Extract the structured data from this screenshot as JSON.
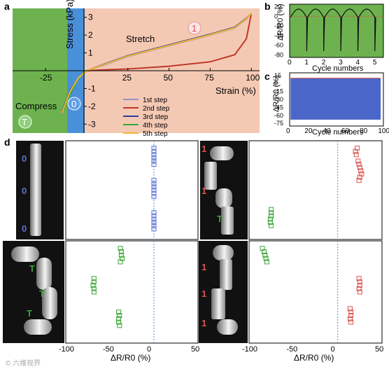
{
  "panels": {
    "a": {
      "letter": "a",
      "y_label": "Stress (kPa)",
      "x_label": "Strain (%)",
      "x_ticks": [
        "-25",
        "25",
        "50",
        "75",
        "100"
      ],
      "y_ticks": [
        "3",
        "2",
        "1",
        "-1",
        "-2",
        "-3"
      ],
      "annotation_stretch": "Stretch",
      "annotation_compress": "Compress",
      "state_stretch": "1",
      "state_neutral": "0",
      "state_compress": "T",
      "colors": {
        "compress_zone": "#6db24f",
        "neutral_zone": "#4a90d9",
        "stretch_zone": "#f4c9b4"
      }
    },
    "b": {
      "letter": "b",
      "y_label": "ΔR/R0 (%)",
      "x_label": "Cycle numbers",
      "x_ticks": [
        "0",
        "1",
        "2",
        "3",
        "4",
        "5"
      ],
      "y_ticks": [
        "20",
        "0",
        "-20",
        "-40",
        "-60",
        "-80"
      ]
    },
    "c": {
      "letter": "c",
      "y_label": "ΔR/R0 (%)",
      "x_label": "Cycle numbers",
      "x_ticks": [
        "0",
        "20",
        "40",
        "60",
        "80",
        "100"
      ],
      "y_ticks": [
        "15",
        "0",
        "-15",
        "-30",
        "-45",
        "-60",
        "-75"
      ]
    },
    "d": {
      "letter": "d",
      "x_label": "ΔR/R0 (%)",
      "x_ticks_left": [
        "-100",
        "-50",
        "0",
        "50"
      ],
      "x_ticks_right": [
        "-100",
        "-50",
        "0",
        "50"
      ],
      "photo_labels": {
        "tl": [
          "0",
          "0",
          "0"
        ],
        "tr": [
          "1",
          "1",
          "T"
        ],
        "bl": [
          "T",
          "T",
          "T"
        ],
        "br": [
          "1",
          "1",
          "1"
        ]
      }
    }
  },
  "watermark": "© 六维视界",
  "chart_data": [
    {
      "panel": "a",
      "type": "line",
      "xlabel": "Strain (%)",
      "ylabel": "Stress (kPa)",
      "xlim": [
        -45,
        105
      ],
      "ylim": [
        -3.5,
        3.5
      ],
      "series": [
        {
          "name": "1st step",
          "color": "#9a8ec8",
          "x": [
            -15,
            -10,
            -5,
            0,
            10,
            25,
            50,
            75,
            90,
            97,
            100
          ],
          "y": [
            -2.4,
            -1.2,
            -0.4,
            0,
            0.3,
            0.8,
            1.4,
            2.0,
            2.4,
            2.9,
            3.2
          ]
        },
        {
          "name": "2nd step",
          "color": "#c0392b",
          "x": [
            100,
            97,
            90,
            75,
            50,
            25,
            10,
            0
          ],
          "y": [
            3.2,
            1.8,
            0.9,
            0.5,
            0.25,
            0.1,
            0.05,
            0
          ]
        },
        {
          "name": "3rd step",
          "color": "#2c3e9a",
          "x": [
            -15,
            -10,
            -5,
            0,
            10,
            25,
            50,
            75,
            90,
            97,
            100
          ],
          "y": [
            -2.3,
            -1.1,
            -0.4,
            0,
            0.35,
            0.85,
            1.45,
            2.05,
            2.45,
            2.95,
            3.2
          ]
        },
        {
          "name": "4th step",
          "color": "#3aa635",
          "x": [
            -14,
            -10,
            -6,
            -3,
            0
          ],
          "y": [
            -2.2,
            -1.3,
            -0.6,
            -0.2,
            0
          ]
        },
        {
          "name": "5th step",
          "color": "#f2b632",
          "x": [
            -15,
            -10,
            -5,
            0,
            10,
            25,
            50,
            75,
            90,
            97,
            100
          ],
          "y": [
            -2.35,
            -1.15,
            -0.4,
            0,
            0.33,
            0.82,
            1.42,
            2.02,
            2.42,
            2.92,
            3.2
          ]
        }
      ]
    },
    {
      "panel": "b",
      "type": "line",
      "xlabel": "Cycle numbers",
      "ylabel": "ΔR/R0 (%)",
      "xlim": [
        0,
        5.5
      ],
      "ylim": [
        -85,
        25
      ],
      "series": [
        {
          "description": "periodic strain cycles",
          "cycles": 5,
          "peak_max": 17,
          "trough_min": -72
        }
      ]
    },
    {
      "panel": "c",
      "type": "line",
      "xlabel": "Cycle numbers",
      "ylabel": "ΔR/R0 (%)",
      "xlim": [
        0,
        102
      ],
      "ylim": [
        -80,
        20
      ],
      "series": [
        {
          "cycles": 100,
          "upper_envelope": 10,
          "lower_envelope": -68
        }
      ]
    },
    {
      "panel": "d-top-left",
      "type": "scatter",
      "xlabel": "ΔR/R0 (%)",
      "xlim": [
        -100,
        50
      ],
      "color": "#5b6fd6",
      "x": [
        0,
        0,
        0,
        0,
        0,
        0,
        0,
        0,
        0,
        0,
        0,
        0,
        0,
        0,
        0,
        0,
        0,
        0
      ],
      "y": [
        1,
        2,
        3,
        4,
        5,
        6,
        11,
        12,
        13,
        14,
        15,
        16,
        21,
        22,
        23,
        24,
        25,
        26
      ]
    },
    {
      "panel": "d-top-right",
      "type": "scatter",
      "xlabel": "ΔR/R0 (%)",
      "xlim": [
        -100,
        50
      ],
      "series": [
        {
          "color": "#d9534f",
          "x": [
            22,
            20,
            21,
            23,
            24,
            25,
            26,
            27,
            25,
            24
          ],
          "y": [
            1,
            2,
            3,
            5,
            6,
            7,
            8,
            9,
            10,
            11
          ]
        },
        {
          "color": "#3aa635",
          "x": [
            -75,
            -75,
            -75,
            -76,
            -76,
            -75
          ],
          "y": [
            20,
            21,
            22,
            23,
            24,
            25
          ]
        }
      ]
    },
    {
      "panel": "d-bottom-left",
      "type": "scatter",
      "xlabel": "ΔR/R0 (%)",
      "xlim": [
        -100,
        50
      ],
      "color": "#3aa635",
      "series": [
        {
          "x": [
            -38,
            -37,
            -37,
            -36,
            -38
          ],
          "y": [
            1,
            2,
            3,
            4,
            5
          ]
        },
        {
          "x": [
            -68,
            -68,
            -69,
            -68,
            -68
          ],
          "y": [
            10,
            11,
            12,
            13,
            14
          ]
        },
        {
          "x": [
            -40,
            -39,
            -40,
            -40,
            -39
          ],
          "y": [
            20,
            21,
            22,
            23,
            24
          ]
        }
      ]
    },
    {
      "panel": "d-bottom-right",
      "type": "scatter",
      "xlabel": "ΔR/R0 (%)",
      "xlim": [
        -100,
        50
      ],
      "series": [
        {
          "color": "#3aa635",
          "x": [
            -85,
            -83,
            -82,
            -81,
            -80
          ],
          "y": [
            1,
            2,
            3,
            4,
            5
          ]
        },
        {
          "color": "#d9534f",
          "x": [
            24,
            25,
            25,
            24,
            25
          ],
          "y": [
            10,
            11,
            12,
            13,
            14
          ]
        },
        {
          "color": "#d9534f",
          "x": [
            14,
            15,
            15,
            14,
            15
          ],
          "y": [
            19,
            20,
            21,
            22,
            23
          ]
        }
      ]
    }
  ]
}
